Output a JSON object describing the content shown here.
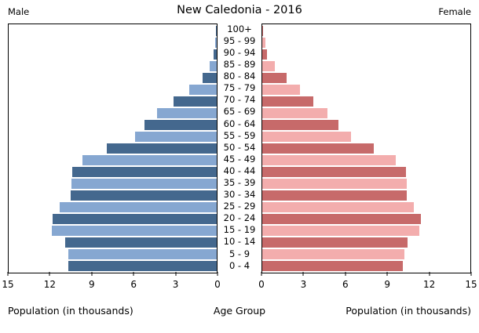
{
  "title": "New Caledonia - 2016",
  "left_header": "Male",
  "right_header": "Female",
  "axis": {
    "male_ticks": [
      "15",
      "12",
      "9",
      "6",
      "3",
      "0"
    ],
    "female_ticks": [
      "0",
      "3",
      "6",
      "9",
      "12",
      "15"
    ],
    "left_axis_label": "Population (in thousands)",
    "center_axis_label": "Age Group",
    "right_axis_label": "Population (in thousands)",
    "max": 15
  },
  "colors": {
    "male_dark": "#44688E",
    "male_light": "#86A7D1",
    "female_dark": "#C76A6A",
    "female_light": "#F3ADAD",
    "frame": "#000000",
    "background": "#FFFFFF"
  },
  "chart_data": {
    "type": "bar",
    "subtype": "population-pyramid",
    "title": "New Caledonia - 2016",
    "xlabel": "Population (in thousands)",
    "ylabel": "Age Group",
    "xlim": [
      0,
      15
    ],
    "tick_step": 3,
    "grid": false,
    "legend_position": "none",
    "categories": [
      "100+",
      "95 - 99",
      "90 - 94",
      "85 - 89",
      "80 - 84",
      "75 - 79",
      "70 - 74",
      "65 - 69",
      "60 - 64",
      "55 - 59",
      "50 - 54",
      "45 - 49",
      "40 - 44",
      "35 - 39",
      "30 - 34",
      "25 - 29",
      "20 - 24",
      "15 - 19",
      "10 - 14",
      "5 - 9",
      "0 - 4"
    ],
    "series": [
      {
        "name": "Male",
        "side": "left",
        "values": [
          0.03,
          0.1,
          0.2,
          0.5,
          1.0,
          2.0,
          3.1,
          4.3,
          5.2,
          5.9,
          7.95,
          9.7,
          10.4,
          10.45,
          10.55,
          11.3,
          11.85,
          11.9,
          10.9,
          10.7,
          10.7
        ]
      },
      {
        "name": "Female",
        "side": "right",
        "values": [
          0.06,
          0.2,
          0.35,
          0.9,
          1.75,
          2.7,
          3.7,
          4.7,
          5.5,
          6.4,
          8.05,
          9.65,
          10.35,
          10.4,
          10.4,
          10.95,
          11.45,
          11.3,
          10.45,
          10.25,
          10.15
        ]
      }
    ]
  }
}
